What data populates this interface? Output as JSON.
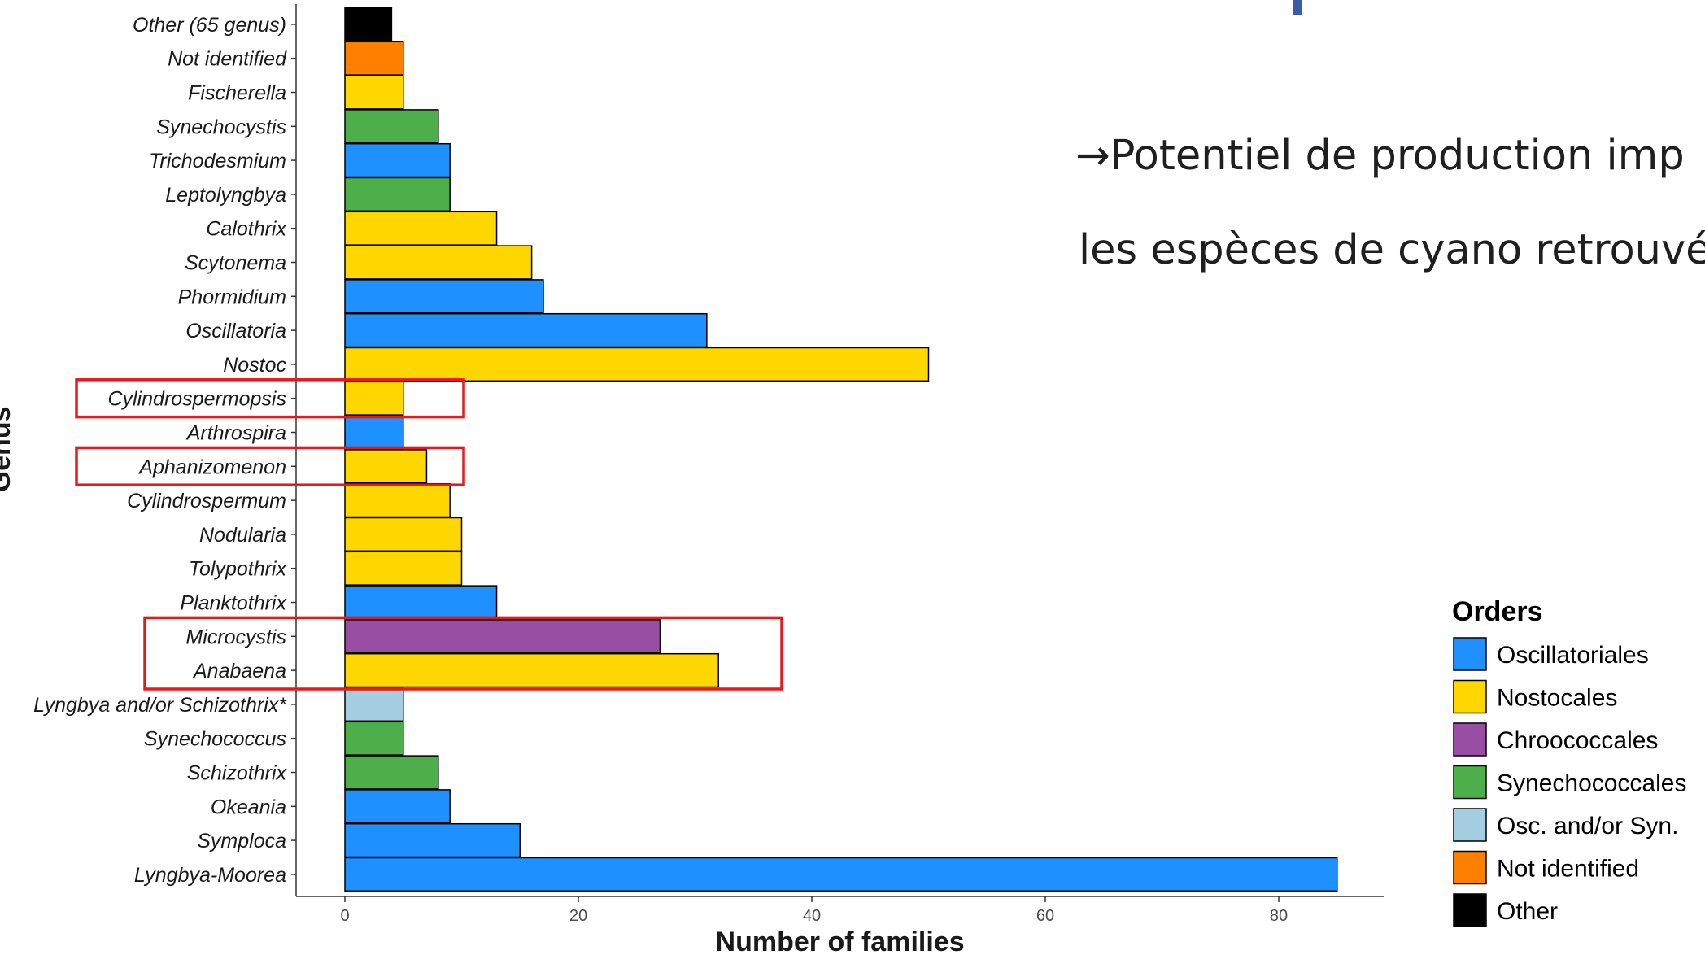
{
  "slide": {
    "line1": "→Potentiel de production imp",
    "line2": "les espèces de cyano retrouvé"
  },
  "chart_data": {
    "type": "bar",
    "orientation": "horizontal",
    "xlabel": "Number of families",
    "ylabel": "Genus",
    "xlim": [
      0,
      89
    ],
    "xticks": [
      0,
      20,
      40,
      60,
      80
    ],
    "grid": false,
    "legend_title": "Orders",
    "legend_placement": "bottom-right",
    "legend": [
      {
        "name": "Oscillatoriales",
        "color": "#1e90ff"
      },
      {
        "name": "Nostocales",
        "color": "#ffd700"
      },
      {
        "name": "Chroococcales",
        "color": "#984ea3"
      },
      {
        "name": "Synechococcales",
        "color": "#4daf4a"
      },
      {
        "name": "Osc. and/or Syn.",
        "color": "#a6cee3"
      },
      {
        "name": "Not identified",
        "color": "#ff7f00"
      },
      {
        "name": "Other",
        "color": "#000000"
      }
    ],
    "categories": [
      "Other (65 genus)",
      "Not identified",
      "Fischerella",
      "Synechocystis",
      "Trichodesmium",
      "Leptolyngbya",
      "Calothrix",
      "Scytonema",
      "Phormidium",
      "Oscillatoria",
      "Nostoc",
      "Cylindrospermopsis",
      "Arthrospira",
      "Aphanizomenon",
      "Cylindrospermum",
      "Nodularia",
      "Tolypothrix",
      "Planktothrix",
      "Microcystis",
      "Anabaena",
      "Lyngbya and/or Schizothrix*",
      "Synechococcus",
      "Schizothrix",
      "Okeania",
      "Symploca",
      "Lyngbya-Moorea"
    ],
    "values": [
      4,
      5,
      5,
      8,
      9,
      9,
      13,
      16,
      17,
      31,
      50,
      5,
      5,
      7,
      9,
      10,
      10,
      13,
      27,
      32,
      5,
      5,
      8,
      9,
      15,
      85
    ],
    "orders": [
      "Other",
      "Not identified",
      "Nostocales",
      "Synechococcales",
      "Oscillatoriales",
      "Synechococcales",
      "Nostocales",
      "Nostocales",
      "Oscillatoriales",
      "Oscillatoriales",
      "Nostocales",
      "Nostocales",
      "Oscillatoriales",
      "Nostocales",
      "Nostocales",
      "Nostocales",
      "Nostocales",
      "Oscillatoriales",
      "Chroococcales",
      "Nostocales",
      "Osc. and/or Syn.",
      "Synechococcales",
      "Synechococcales",
      "Oscillatoriales",
      "Oscillatoriales",
      "Oscillatoriales"
    ],
    "highlight_color": "#e8191c",
    "highlighted_groups": [
      [
        "Cylindrospermopsis"
      ],
      [
        "Aphanizomenon"
      ],
      [
        "Microcystis",
        "Anabaena"
      ]
    ]
  }
}
